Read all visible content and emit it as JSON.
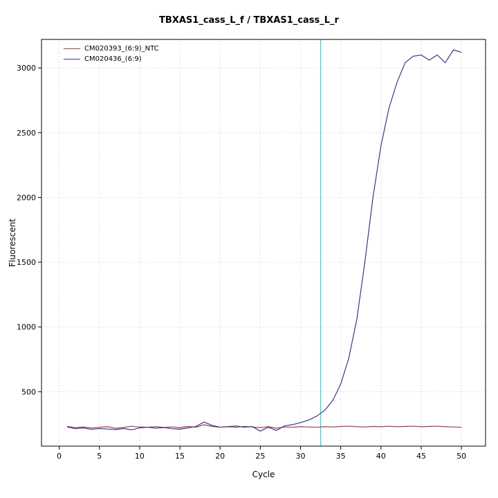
{
  "title": "TBXAS1_cass_L_f / TBXAS1_cass_L_r",
  "chart_data": {
    "type": "line",
    "title": "TBXAS1_cass_L_f / TBXAS1_cass_L_r",
    "xlabel": "Cycle",
    "ylabel": "Fluorescent",
    "x_start": 1,
    "xticks": [
      0,
      5,
      10,
      15,
      20,
      25,
      30,
      35,
      40,
      45,
      50
    ],
    "yticks": [
      500,
      1000,
      1500,
      2000,
      2500,
      3000
    ],
    "xlim": [
      -2.2,
      53
    ],
    "ylim": [
      80,
      3220
    ],
    "grid": true,
    "legend_position": "top-left",
    "threshold_cycle": 32.5,
    "threshold_color": "#45d0e2",
    "grid_color": "#c3c3c3",
    "axis_color": "#000000",
    "series": [
      {
        "name": "CM020393_(6:9)_NTC",
        "color": "#9a4040",
        "values": [
          232,
          222,
          228,
          220,
          226,
          230,
          218,
          224,
          234,
          228,
          226,
          230,
          224,
          228,
          222,
          232,
          226,
          245,
          232,
          226,
          230,
          226,
          232,
          228,
          222,
          230,
          218,
          228,
          226,
          230,
          228,
          226,
          230,
          228,
          232,
          234,
          230,
          228,
          232,
          230,
          234,
          230,
          232,
          234,
          230,
          232,
          234,
          230,
          228,
          226
        ]
      },
      {
        "name": "CM020436_(6:9)",
        "color": "#38388c",
        "values": [
          228,
          215,
          221,
          210,
          216,
          212,
          208,
          216,
          206,
          221,
          226,
          218,
          223,
          215,
          211,
          221,
          231,
          266,
          241,
          226,
          231,
          236,
          226,
          231,
          196,
          226,
          201,
          236,
          246,
          261,
          281,
          311,
          356,
          432,
          560,
          760,
          1060,
          1500,
          2000,
          2400,
          2690,
          2890,
          3040,
          3090,
          3100,
          3060,
          3100,
          3040,
          3140,
          3120
        ]
      }
    ]
  }
}
